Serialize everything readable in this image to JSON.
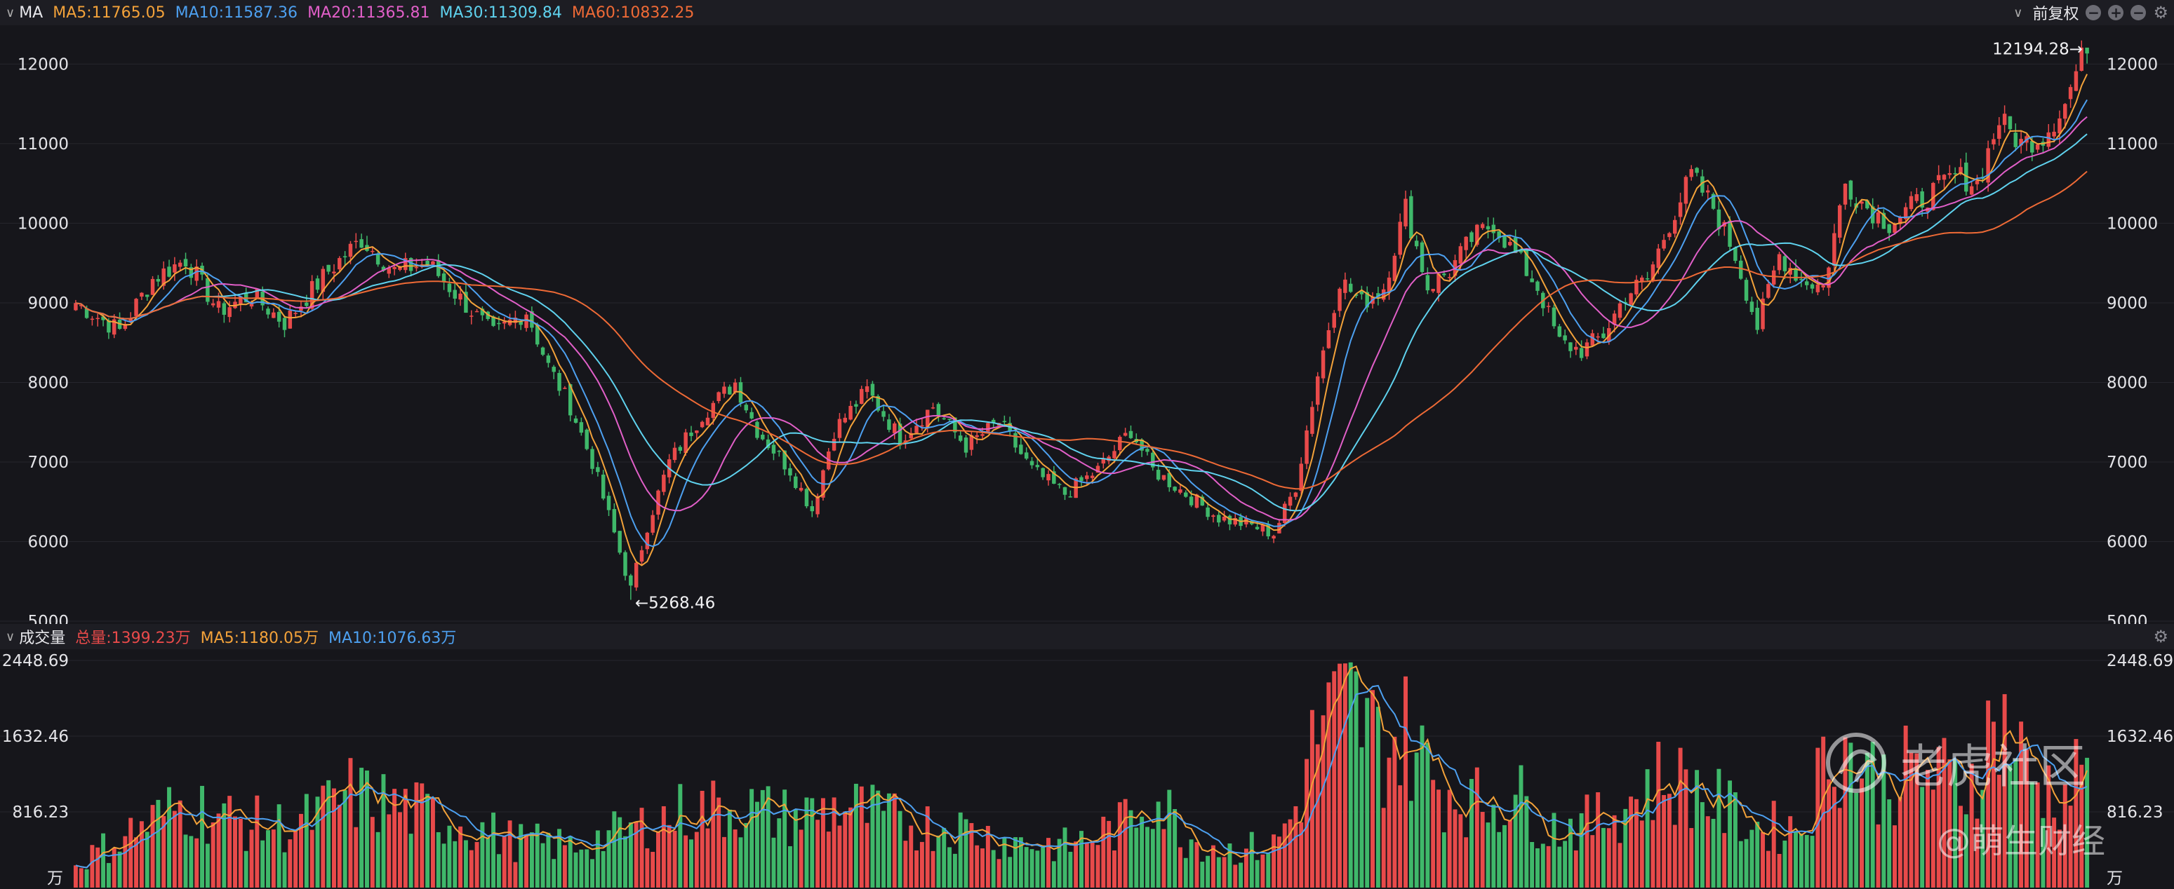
{
  "header": {
    "title": "MA",
    "ma_items": [
      {
        "label": "MA5:11765.05",
        "color": "#f3a23a"
      },
      {
        "label": "MA10:11587.36",
        "color": "#4da0f0"
      },
      {
        "label": "MA20:11365.81",
        "color": "#e15fc8"
      },
      {
        "label": "MA30:11309.84",
        "color": "#5fd2ee"
      },
      {
        "label": "MA60:10832.25",
        "color": "#ee6a36"
      }
    ],
    "adjust_label": "前复权"
  },
  "volume_header": {
    "title": "成交量",
    "items": [
      {
        "label": "总量:1399.23万",
        "color": "#e84a4a"
      },
      {
        "label": "MA5:1180.05万",
        "color": "#f3a23a"
      },
      {
        "label": "MA10:1076.63万",
        "color": "#4da0f0"
      }
    ]
  },
  "chart_data": [
    {
      "type": "candlestick",
      "y_ticks": [
        "12000",
        "11000",
        "10000",
        "9000",
        "8000",
        "7000",
        "6000",
        "5000"
      ],
      "ylim": [
        5000,
        12400
      ],
      "annotations": {
        "high": "12194.28→",
        "low": "←5268.46"
      },
      "high_value": 12194.28,
      "low_value": 5268.46,
      "colors": {
        "up": "#e84a4a",
        "down": "#3fb86a"
      },
      "close_path": [
        [
          0,
          9000
        ],
        [
          8,
          8650
        ],
        [
          14,
          9300
        ],
        [
          20,
          9550
        ],
        [
          26,
          8900
        ],
        [
          32,
          9100
        ],
        [
          38,
          8750
        ],
        [
          46,
          9400
        ],
        [
          52,
          9800
        ],
        [
          58,
          9400
        ],
        [
          64,
          9500
        ],
        [
          70,
          9050
        ],
        [
          76,
          8600
        ],
        [
          82,
          8900
        ],
        [
          86,
          8200
        ],
        [
          90,
          7700
        ],
        [
          94,
          7000
        ],
        [
          98,
          6100
        ],
        [
          101,
          5400
        ],
        [
          104,
          6200
        ],
        [
          108,
          7000
        ],
        [
          114,
          7600
        ],
        [
          120,
          8000
        ],
        [
          124,
          7400
        ],
        [
          130,
          6900
        ],
        [
          134,
          6400
        ],
        [
          138,
          7400
        ],
        [
          144,
          7900
        ],
        [
          150,
          7300
        ],
        [
          156,
          7700
        ],
        [
          162,
          7200
        ],
        [
          168,
          7500
        ],
        [
          174,
          6900
        ],
        [
          180,
          6600
        ],
        [
          186,
          6900
        ],
        [
          192,
          7400
        ],
        [
          196,
          6900
        ],
        [
          202,
          6600
        ],
        [
          208,
          6300
        ],
        [
          214,
          6200
        ],
        [
          218,
          6100
        ],
        [
          222,
          6700
        ],
        [
          226,
          8100
        ],
        [
          230,
          9300
        ],
        [
          234,
          9000
        ],
        [
          238,
          9200
        ],
        [
          242,
          10200
        ],
        [
          246,
          9200
        ],
        [
          250,
          9400
        ],
        [
          254,
          9800
        ],
        [
          258,
          10000
        ],
        [
          262,
          9600
        ],
        [
          266,
          9200
        ],
        [
          270,
          8500
        ],
        [
          274,
          8400
        ],
        [
          278,
          8600
        ],
        [
          282,
          9100
        ],
        [
          286,
          9300
        ],
        [
          290,
          10000
        ],
        [
          294,
          10600
        ],
        [
          298,
          10200
        ],
        [
          302,
          9600
        ],
        [
          306,
          8700
        ],
        [
          310,
          9600
        ],
        [
          314,
          9300
        ],
        [
          318,
          9200
        ],
        [
          322,
          10500
        ],
        [
          326,
          10200
        ],
        [
          330,
          10000
        ],
        [
          336,
          10300
        ],
        [
          342,
          10600
        ],
        [
          346,
          10500
        ],
        [
          350,
          11300
        ],
        [
          354,
          11000
        ],
        [
          358,
          11100
        ],
        [
          362,
          11500
        ],
        [
          364,
          11900
        ],
        [
          366,
          12194
        ]
      ],
      "ma_series": [
        {
          "name": "MA5",
          "color": "#f3a23a",
          "lag": 2
        },
        {
          "name": "MA10",
          "color": "#4da0f0",
          "lag": 4
        },
        {
          "name": "MA20",
          "color": "#e15fc8",
          "lag": 8
        },
        {
          "name": "MA30",
          "color": "#5fd2ee",
          "lag": 12
        },
        {
          "name": "MA60",
          "color": "#ee6a36",
          "lag": 24
        }
      ]
    },
    {
      "type": "bar",
      "unit": "万",
      "y_ticks": [
        "2448.69",
        "1632.46",
        "816.23"
      ],
      "ylim": [
        0,
        2448.69
      ],
      "total": 1399.23,
      "volume_path": [
        [
          0,
          250
        ],
        [
          10,
          600
        ],
        [
          20,
          900
        ],
        [
          30,
          700
        ],
        [
          40,
          650
        ],
        [
          50,
          1000
        ],
        [
          60,
          850
        ],
        [
          70,
          700
        ],
        [
          80,
          500
        ],
        [
          90,
          450
        ],
        [
          100,
          600
        ],
        [
          110,
          800
        ],
        [
          120,
          880
        ],
        [
          130,
          750
        ],
        [
          140,
          880
        ],
        [
          150,
          700
        ],
        [
          160,
          650
        ],
        [
          170,
          500
        ],
        [
          180,
          450
        ],
        [
          190,
          650
        ],
        [
          196,
          1050
        ],
        [
          202,
          550
        ],
        [
          210,
          400
        ],
        [
          218,
          450
        ],
        [
          222,
          850
        ],
        [
          226,
          1700
        ],
        [
          232,
          1950
        ],
        [
          238,
          1500
        ],
        [
          242,
          1650
        ],
        [
          248,
          1100
        ],
        [
          256,
          900
        ],
        [
          262,
          1000
        ],
        [
          268,
          650
        ],
        [
          276,
          700
        ],
        [
          282,
          900
        ],
        [
          288,
          1150
        ],
        [
          294,
          1100
        ],
        [
          300,
          850
        ],
        [
          306,
          650
        ],
        [
          314,
          650
        ],
        [
          320,
          1600
        ],
        [
          328,
          1150
        ],
        [
          336,
          1250
        ],
        [
          344,
          1100
        ],
        [
          350,
          1850
        ],
        [
          356,
          1150
        ],
        [
          362,
          1000
        ],
        [
          366,
          1400
        ]
      ],
      "colors": {
        "up": "#e84a4a",
        "down": "#3fb86a"
      }
    }
  ],
  "watermark": {
    "brand": "老虎社区",
    "author": "@萌生财经"
  }
}
